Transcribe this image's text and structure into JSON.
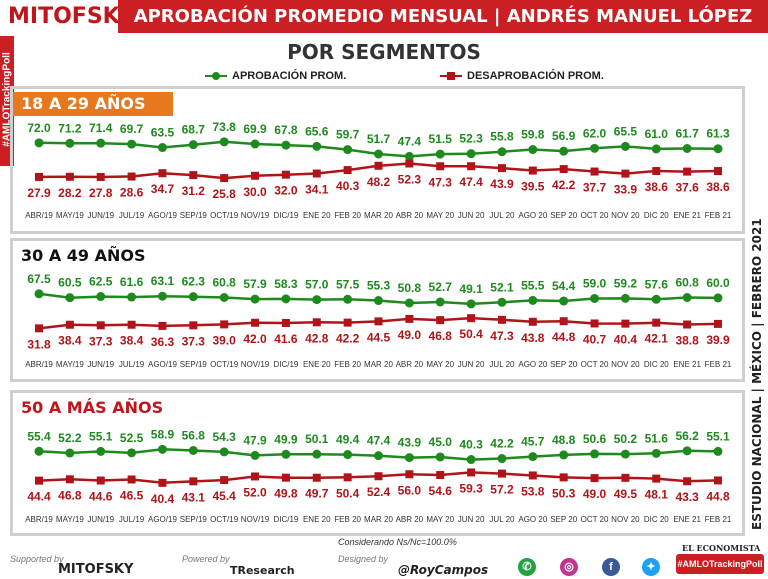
{
  "header": {
    "brand": "MITOFSKY",
    "title": "APROBACIÓN PROMEDIO MENSUAL  |  ANDRÉS MANUEL LÓPEZ OBRADOR",
    "subtitle": "POR SEGMENTOS",
    "hashtag": "#AMLOTrackingPoll"
  },
  "legend": {
    "approval": "APROBACIÓN PROM.",
    "disapproval": "DESAPROBACIÓN PROM."
  },
  "colors": {
    "approval": "#1e8a1e",
    "disapproval": "#b01418",
    "header_red": "#cc1f24",
    "segment_orange": "#e8781e"
  },
  "side_band": {
    "text": "ESTUDIO NACIONAL  |  MÉXICO  |  FEBRERO 2021"
  },
  "footer": {
    "note": "Considerando Ns/Nc=100.0%",
    "supported_by": "Supported by",
    "powered_by": "Powered by",
    "designed_by": "Designed by",
    "brand1": "MITOFSKY",
    "brand2": "TResearch",
    "brand3": "@RoyCampos",
    "economista": "EL ECONOMISTA",
    "tracking": "#AMLOTrackingPoll"
  },
  "chart_data": [
    {
      "type": "line",
      "segment": "18 A 29 AÑOS",
      "categories": [
        "ABR/19",
        "MAY/19",
        "JUN/19",
        "JUL/19",
        "AGO/19",
        "SEP/19",
        "OCT/19",
        "NOV/19",
        "DIC/19",
        "ENE 20",
        "FEB 20",
        "MAR 20",
        "ABR 20",
        "MAY 20",
        "JUN 20",
        "JUL 20",
        "AGO 20",
        "SEP 20",
        "OCT 20",
        "NOV 20",
        "DIC 20",
        "ENE 21",
        "FEB 21"
      ],
      "series": [
        {
          "name": "APROBACIÓN PROM.",
          "values": [
            72.0,
            71.2,
            71.4,
            69.7,
            63.5,
            68.7,
            73.8,
            69.9,
            67.8,
            65.6,
            59.7,
            51.7,
            47.4,
            51.5,
            52.3,
            55.8,
            59.8,
            56.9,
            62.0,
            65.5,
            61.0,
            61.7,
            61.3
          ]
        },
        {
          "name": "DESAPROBACIÓN PROM.",
          "values": [
            27.9,
            28.2,
            27.8,
            28.6,
            34.7,
            31.2,
            25.8,
            30.0,
            32.0,
            34.1,
            40.3,
            48.2,
            52.3,
            47.3,
            47.4,
            43.9,
            39.5,
            42.2,
            37.7,
            33.9,
            38.6,
            37.6,
            38.6
          ]
        }
      ]
    },
    {
      "type": "line",
      "segment": "30 A 49 AÑOS",
      "categories": [
        "ABR/19",
        "MAY/19",
        "JUN/19",
        "JUL/19",
        "AGO/19",
        "SEP/19",
        "OCT/19",
        "NOV/19",
        "DIC/19",
        "ENE 20",
        "FEB 20",
        "MAR 20",
        "ABR 20",
        "MAY 20",
        "JUN 20",
        "JUL 20",
        "AGO 20",
        "SEP 20",
        "OCT 20",
        "NOV 20",
        "DIC 20",
        "ENE 21",
        "FEB 21"
      ],
      "series": [
        {
          "name": "APROBACIÓN PROM.",
          "values": [
            67.5,
            60.5,
            62.5,
            61.6,
            63.1,
            62.3,
            60.8,
            57.9,
            58.3,
            57.0,
            57.5,
            55.3,
            50.8,
            52.7,
            49.1,
            52.1,
            55.5,
            54.4,
            59.0,
            59.2,
            57.6,
            60.8,
            60.0
          ]
        },
        {
          "name": "DESAPROBACIÓN PROM.",
          "values": [
            31.8,
            38.4,
            37.3,
            38.4,
            36.3,
            37.3,
            39.0,
            42.0,
            41.6,
            42.8,
            42.2,
            44.5,
            49.0,
            46.8,
            50.4,
            47.3,
            43.8,
            44.8,
            40.7,
            40.4,
            42.1,
            38.8,
            39.9
          ]
        }
      ]
    },
    {
      "type": "line",
      "segment": "50 A MÁS AÑOS",
      "categories": [
        "ABR/19",
        "MAY/19",
        "JUN/19",
        "JUL/19",
        "AGO/19",
        "SEP/19",
        "OCT/19",
        "NOV/19",
        "DIC/19",
        "ENE 20",
        "FEB 20",
        "MAR 20",
        "ABR 20",
        "MAY 20",
        "JUN 20",
        "JUL 20",
        "AGO 20",
        "SEP 20",
        "OCT 20",
        "NOV 20",
        "DIC 20",
        "ENE 21",
        "FEB 21"
      ],
      "series": [
        {
          "name": "APROBACIÓN PROM.",
          "values": [
            55.4,
            52.2,
            55.1,
            52.5,
            58.9,
            56.8,
            54.3,
            47.9,
            49.9,
            50.1,
            49.4,
            47.4,
            43.9,
            45.0,
            40.3,
            42.2,
            45.7,
            48.8,
            50.6,
            50.2,
            51.6,
            56.2,
            55.1
          ]
        },
        {
          "name": "DESAPROBACIÓN PROM.",
          "values": [
            44.4,
            46.8,
            44.6,
            46.5,
            40.4,
            43.1,
            45.4,
            52.0,
            49.8,
            49.7,
            50.4,
            52.4,
            56.0,
            54.6,
            59.3,
            57.2,
            53.8,
            50.3,
            49.0,
            49.5,
            48.1,
            43.3,
            44.8
          ]
        }
      ]
    }
  ]
}
